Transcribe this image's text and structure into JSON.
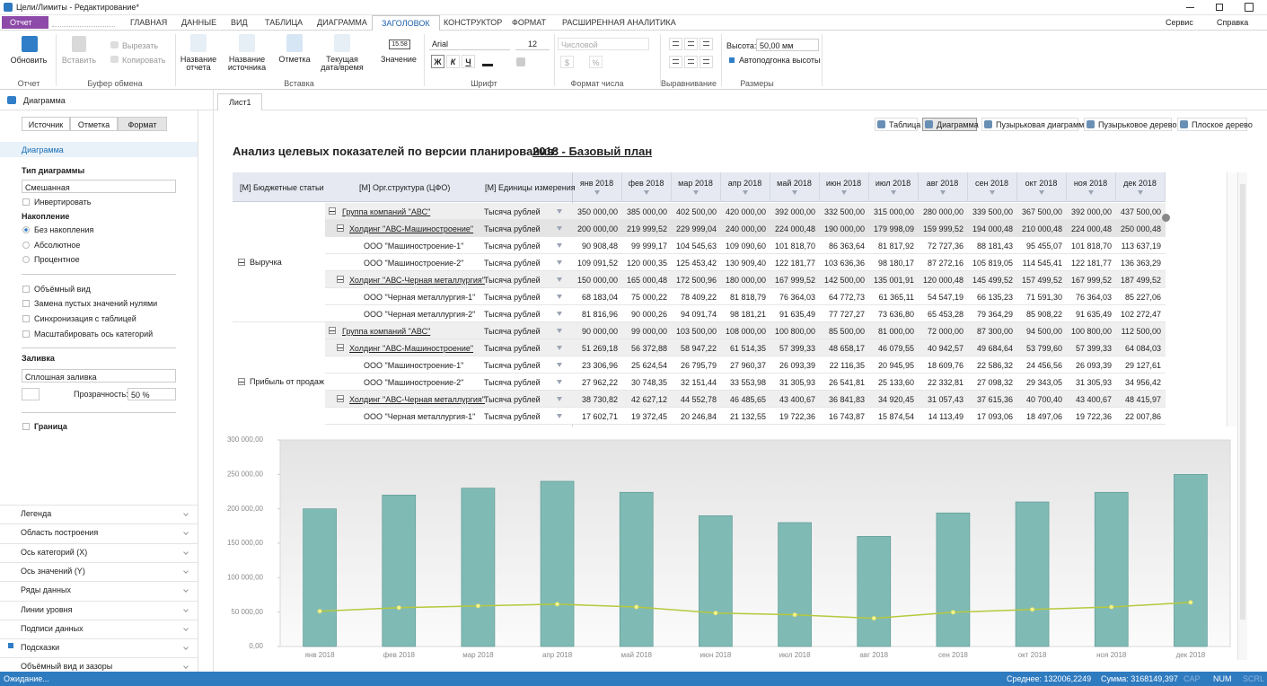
{
  "window": {
    "title": "Цели/Лимиты - Редактирование*"
  },
  "ribbon": {
    "report_menu": "Отчет",
    "tabs": [
      "ГЛАВНАЯ",
      "ДАННЫЕ",
      "ВИД",
      "ТАБЛИЦА",
      "ДИАГРАММА",
      "ЗАГОЛОВОК",
      "КОНСТРУКТОР",
      "ФОРМАТ",
      "РАСШИРЕННАЯ АНАЛИТИКА"
    ],
    "right_menu": [
      "Сервис",
      "Справка"
    ],
    "groups": [
      "Отчет",
      "Буфер обмена",
      "Вставка",
      "Шрифт",
      "Формат числа",
      "Выравнивание",
      "Размеры"
    ],
    "refresh": "Обновить",
    "paste": "Вставить",
    "cut": "Вырезать",
    "copy": "Копировать",
    "insert_buttons": [
      "Название отчета",
      "Название источника",
      "Отметка",
      "Текущая дата/время",
      "Значение"
    ],
    "value_icon": "15.58",
    "font": "Arial",
    "font_size": "12",
    "font_styles": [
      "Ж",
      "К",
      "Ч"
    ],
    "number_format": "Числовой",
    "number_buttons": [
      "$",
      "%"
    ],
    "height_label": "Высота:",
    "height_value": "50,00 мм",
    "autofit": "Автоподгонка высоты"
  },
  "sidebar": {
    "panel_title": "Диаграмма",
    "tabs": [
      "Источник",
      "Отметка",
      "Формат"
    ],
    "section": "Диаграмма",
    "chart_type_label": "Тип диаграммы",
    "chart_type": "Смешанная",
    "invert": "Инвертировать",
    "accumulation_label": "Накопление",
    "accumulation": [
      "Без накопления",
      "Абсолютное",
      "Процентное"
    ],
    "options": [
      "Объёмный вид",
      "Замена пустых значений нулями",
      "Синхронизация с таблицей",
      "Масштабировать ось категорий"
    ],
    "fill_label": "Заливка",
    "fill": "Сплошная заливка",
    "transparency_label": "Прозрачность:",
    "transparency": "50 %",
    "border": "Граница",
    "sections": [
      "Легенда",
      "Область построения",
      "Ось категорий (X)",
      "Ось значений (Y)",
      "Ряды данных",
      "Линии уровня",
      "Подписи данных",
      "Подсказки",
      "Объёмный вид и зазоры"
    ]
  },
  "sheet": {
    "tab": "Лист1",
    "views": [
      "Таблица",
      "Диаграмма",
      "Пузырьковая диаграмма",
      "Пузырьковое дерево",
      "Плоское дерево"
    ],
    "heading": "Анализ целевых показателей по версии планирования:",
    "heading_version": "2018 - Базовый план"
  },
  "table": {
    "headers": [
      "[М] Бюджетные статьи",
      "[М] Орг.структура (ЦФО)",
      "[М] Единицы измерения"
    ],
    "months": [
      "янв 2018",
      "фев 2018",
      "мар 2018",
      "апр 2018",
      "май 2018",
      "июн 2018",
      "июл 2018",
      "авг 2018",
      "сен 2018",
      "окт 2018",
      "ноя 2018",
      "дек 2018"
    ],
    "groups": [
      "Выручка",
      "Прибыль от продаж"
    ],
    "rows": [
      {
        "name": "Группа компаний \"АВС\"",
        "unit": "Тысяча рублей",
        "values": [
          "350 000,00",
          "385 000,00",
          "402 500,00",
          "420 000,00",
          "392 000,00",
          "332 500,00",
          "315 000,00",
          "280 000,00",
          "339 500,00",
          "367 500,00",
          "392 000,00",
          "437 500,00"
        ]
      },
      {
        "name": "Холдинг \"АВС-Машиностроение\"",
        "unit": "Тысяча рублей",
        "values": [
          "200 000,00",
          "219 999,52",
          "229 999,04",
          "240 000,00",
          "224 000,48",
          "190 000,00",
          "179 998,09",
          "159 999,52",
          "194 000,48",
          "210 000,48",
          "224 000,48",
          "250 000,48"
        ]
      },
      {
        "name": "ООО \"Машиностроение-1\"",
        "unit": "Тысяча рублей",
        "values": [
          "90 908,48",
          "99 999,17",
          "104 545,63",
          "109 090,60",
          "101 818,70",
          "86 363,64",
          "81 817,92",
          "72 727,36",
          "88 181,43",
          "95 455,07",
          "101 818,70",
          "113 637,19"
        ]
      },
      {
        "name": "ООО \"Машиностроение-2\"",
        "unit": "Тысяча рублей",
        "values": [
          "109 091,52",
          "120 000,35",
          "125 453,42",
          "130 909,40",
          "122 181,77",
          "103 636,36",
          "98 180,17",
          "87 272,16",
          "105 819,05",
          "114 545,41",
          "122 181,77",
          "136 363,29"
        ]
      },
      {
        "name": "Холдинг \"АВС-Черная металлургия\"",
        "unit": "Тысяча рублей",
        "values": [
          "150 000,00",
          "165 000,48",
          "172 500,96",
          "180 000,00",
          "167 999,52",
          "142 500,00",
          "135 001,91",
          "120 000,48",
          "145 499,52",
          "157 499,52",
          "167 999,52",
          "187 499,52"
        ]
      },
      {
        "name": "ООО \"Черная металлургия-1\"",
        "unit": "Тысяча рублей",
        "values": [
          "68 183,04",
          "75 000,22",
          "78 409,22",
          "81 818,79",
          "76 364,03",
          "64 772,73",
          "61 365,11",
          "54 547,19",
          "66 135,23",
          "71 591,30",
          "76 364,03",
          "85 227,06"
        ]
      },
      {
        "name": "ООО \"Черная металлургия-2\"",
        "unit": "Тысяча рублей",
        "values": [
          "81 816,96",
          "90 000,26",
          "94 091,74",
          "98 181,21",
          "91 635,49",
          "77 727,27",
          "73 636,80",
          "65 453,28",
          "79 364,29",
          "85 908,22",
          "91 635,49",
          "102 272,47"
        ]
      },
      {
        "name": "Группа компаний \"АВС\"",
        "unit": "Тысяча рублей",
        "values": [
          "90 000,00",
          "99 000,00",
          "103 500,00",
          "108 000,00",
          "100 800,00",
          "85 500,00",
          "81 000,00",
          "72 000,00",
          "87 300,00",
          "94 500,00",
          "100 800,00",
          "112 500,00"
        ]
      },
      {
        "name": "Холдинг \"АВС-Машиностроение\"",
        "unit": "Тысяча рублей",
        "values": [
          "51 269,18",
          "56 372,88",
          "58 947,22",
          "61 514,35",
          "57 399,33",
          "48 658,17",
          "46 079,55",
          "40 942,57",
          "49 684,64",
          "53 799,60",
          "57 399,33",
          "64 084,03"
        ]
      },
      {
        "name": "ООО \"Машиностроение-1\"",
        "unit": "Тысяча рублей",
        "values": [
          "23 306,96",
          "25 624,54",
          "26 795,79",
          "27 960,37",
          "26 093,39",
          "22 116,35",
          "20 945,95",
          "18 609,76",
          "22 586,32",
          "24 456,56",
          "26 093,39",
          "29 127,61"
        ]
      },
      {
        "name": "ООО \"Машиностроение-2\"",
        "unit": "Тысяча рублей",
        "values": [
          "27 962,22",
          "30 748,35",
          "32 151,44",
          "33 553,98",
          "31 305,93",
          "26 541,81",
          "25 133,60",
          "22 332,81",
          "27 098,32",
          "29 343,05",
          "31 305,93",
          "34 956,42"
        ]
      },
      {
        "name": "Холдинг \"АВС-Черная металлургия\"",
        "unit": "Тысяча рублей",
        "values": [
          "38 730,82",
          "42 627,12",
          "44 552,78",
          "46 485,65",
          "43 400,67",
          "36 841,83",
          "34 920,45",
          "31 057,43",
          "37 615,36",
          "40 700,40",
          "43 400,67",
          "48 415,97"
        ]
      },
      {
        "name": "ООО \"Черная металлургия-1\"",
        "unit": "Тысяча рублей",
        "values": [
          "17 602,71",
          "19 372,45",
          "20 246,84",
          "21 132,55",
          "19 722,36",
          "16 743,87",
          "15 874,54",
          "14 113,49",
          "17 093,06",
          "18 497,06",
          "19 722,36",
          "22 007,86"
        ]
      }
    ]
  },
  "chart_data": {
    "type": "combo",
    "categories": [
      "янв 2018",
      "фев 2018",
      "мар 2018",
      "апр 2018",
      "май 2018",
      "июн 2018",
      "июл 2018",
      "авг 2018",
      "сен 2018",
      "окт 2018",
      "ноя 2018",
      "дек 2018"
    ],
    "series": [
      {
        "type": "bar",
        "color": "#80bab5",
        "values": [
          200000,
          219999.52,
          229999.04,
          240000,
          224000.48,
          190000,
          179998.09,
          159999.52,
          194000.48,
          210000.48,
          224000.48,
          250000.48
        ]
      },
      {
        "type": "line",
        "color": "#b6c83c",
        "values": [
          51269.18,
          56372.88,
          58947.22,
          61514.35,
          57399.33,
          48658.17,
          46079.55,
          40942.57,
          49684.64,
          53799.6,
          57399.33,
          64084.03
        ]
      }
    ],
    "ylim": [
      0,
      300000
    ],
    "yticks": [
      {
        "value": 0,
        "label": "0,00"
      },
      {
        "value": 50000,
        "label": "50 000,00"
      },
      {
        "value": 100000,
        "label": "100 000,00"
      },
      {
        "value": 150000,
        "label": "150 000,00"
      },
      {
        "value": 200000,
        "label": "200 000,00"
      },
      {
        "value": 250000,
        "label": "250 000,00"
      },
      {
        "value": 300000,
        "label": "300 000,00"
      }
    ],
    "grid": false
  },
  "status": {
    "state": "Ожидание...",
    "average": "Среднее: 132006,2249",
    "sum": "Сумма: 3168149,397",
    "indicators": [
      "CAP",
      "NUM",
      "SCRL"
    ]
  }
}
